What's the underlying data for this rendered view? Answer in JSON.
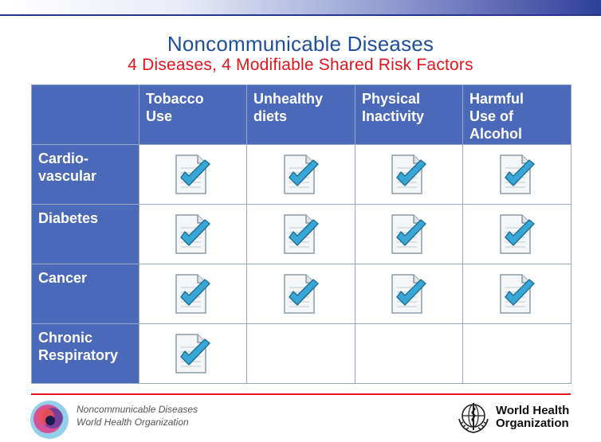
{
  "title": "Noncommunicable Diseases",
  "subtitle": "4 Diseases, 4 Modifiable Shared Risk Factors",
  "colors": {
    "header_blue": "#4a69b8",
    "title_blue": "#1f4e9a",
    "accent_red": "#e3141b",
    "check_blue": "#39a7d6"
  },
  "table": {
    "columns": [
      {
        "lines": [
          "Tobacco",
          "Use"
        ]
      },
      {
        "lines": [
          "Unhealthy",
          "diets"
        ]
      },
      {
        "lines": [
          "Physical",
          "Inactivity"
        ]
      },
      {
        "lines": [
          "Harmful",
          "Use of",
          "Alcohol"
        ]
      }
    ],
    "rows": [
      {
        "lines": [
          "Cardio-",
          "vascular"
        ],
        "checks": [
          true,
          true,
          true,
          true
        ]
      },
      {
        "lines": [
          "Diabetes"
        ],
        "checks": [
          true,
          true,
          true,
          true
        ]
      },
      {
        "lines": [
          "Cancer"
        ],
        "checks": [
          true,
          true,
          true,
          true
        ]
      },
      {
        "lines": [
          "Chronic",
          "Respiratory"
        ],
        "checks": [
          true,
          false,
          false,
          false
        ]
      }
    ],
    "check_icon": "checked-document-icon"
  },
  "footer": {
    "line1": "Noncommunicable Diseases",
    "line2": "World Health Organization",
    "logo_icon": "ncd-circles-logo",
    "who_icon": "who-emblem-icon",
    "who_line1": "World Health",
    "who_line2": "Organization"
  }
}
